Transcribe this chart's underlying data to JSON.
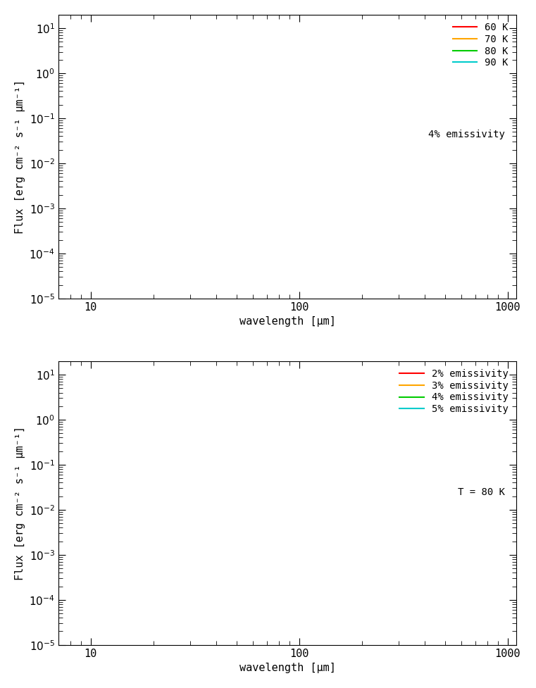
{
  "temperatures": [
    60,
    70,
    80,
    90
  ],
  "temp_colors": [
    "#ff0000",
    "#ffa500",
    "#00cc00",
    "#00cccc"
  ],
  "emissivities": [
    0.02,
    0.03,
    0.04,
    0.05
  ],
  "emis_colors": [
    "#ff0000",
    "#ffa500",
    "#00cc00",
    "#00cccc"
  ],
  "fixed_emissivity": 0.04,
  "fixed_temperature": 80,
  "wavelength_min": 7,
  "wavelength_max": 1100,
  "flux_min": 1e-05,
  "flux_max": 20,
  "ylabel": "Flux [erg cm⁻² s⁻¹ μm⁻¹]",
  "xlabel": "wavelength [μm]",
  "top_legend_labels": [
    "60 K",
    "70 K",
    "80 K",
    "90 K"
  ],
  "top_legend_note": "4% emissivity",
  "bottom_legend_labels": [
    "2% emissivity",
    "3% emissivity",
    "4% emissivity",
    "5% emissivity"
  ],
  "bottom_legend_note": "T = 80 K",
  "background_color": "#ffffff",
  "font_size": 11,
  "scale_factor": 2.5e-12
}
